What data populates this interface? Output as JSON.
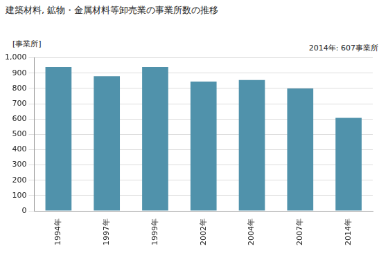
{
  "chart_data": {
    "type": "bar",
    "title": "建築材料, 鉱物・金属材料等卸売業の事業所数の推移",
    "ylabel": "[事業所]",
    "annotations": [
      "2014年: 607事業所"
    ],
    "categories": [
      "1994年",
      "1997年",
      "1999年",
      "2002年",
      "2004年",
      "2007年",
      "2014年"
    ],
    "values": [
      940,
      880,
      940,
      845,
      855,
      800,
      607
    ],
    "color": "#5092ab",
    "ylim": [
      0,
      1000
    ],
    "yticks": [
      0,
      100,
      200,
      300,
      400,
      500,
      600,
      700,
      800,
      900,
      {
        "value": 1000,
        "label": "1,000"
      }
    ],
    "grid": true
  }
}
